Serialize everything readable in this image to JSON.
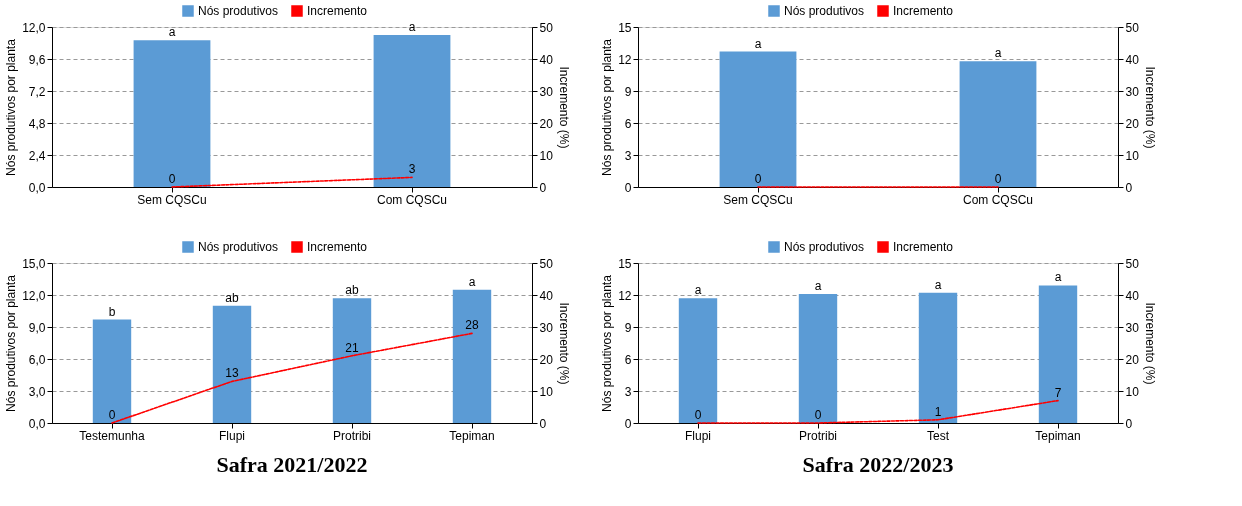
{
  "chart_data": [
    {
      "type": "bar",
      "categories": [
        "Sem CQSCu",
        "Com CQSCu"
      ],
      "ylabel": "Nós produtivos por planta",
      "y2label": "Incremento (%)",
      "ylim": [
        0,
        12
      ],
      "yticks": [
        {
          "value": 0,
          "label": "0,0"
        },
        {
          "value": 2.4,
          "label": "2,4"
        },
        {
          "value": 4.8,
          "label": "4,8"
        },
        {
          "value": 7.2,
          "label": "7,2"
        },
        {
          "value": 9.6,
          "label": "9,6"
        },
        {
          "value": 12,
          "label": "12,0"
        }
      ],
      "y2lim": [
        0,
        50
      ],
      "y2ticks": [
        0,
        10,
        20,
        30,
        40,
        50
      ],
      "grid": "y",
      "legend": "top",
      "series": [
        {
          "name": "Nós produtivos",
          "color": "#5b9bd5",
          "values": [
            11.0,
            11.4
          ],
          "value_labels": [
            "a",
            "a"
          ]
        },
        {
          "name": "Incremento",
          "type": "line",
          "axis": "y2",
          "line_style": "dashed",
          "color": "#ff0000",
          "values": [
            0,
            3
          ],
          "value_labels": [
            "0",
            "3"
          ]
        }
      ]
    },
    {
      "type": "bar",
      "categories": [
        "Sem CQSCu",
        "Com CQSCu"
      ],
      "ylabel": "Nós produtivos por planta",
      "y2label": "Incremento (%)",
      "ylim": [
        0,
        15
      ],
      "yticks": [
        0,
        3,
        6,
        9,
        12,
        15
      ],
      "y2lim": [
        0,
        50
      ],
      "y2ticks": [
        0,
        10,
        20,
        30,
        40,
        50
      ],
      "grid": "y",
      "legend": "top",
      "series": [
        {
          "name": "Nós produtivos",
          "color": "#5b9bd5",
          "values": [
            12.7,
            11.8
          ],
          "value_labels": [
            "a",
            "a"
          ]
        },
        {
          "name": "Incremento",
          "type": "line",
          "axis": "y2",
          "line_style": "dashed",
          "color": "#ff0000",
          "values": [
            0,
            0
          ],
          "value_labels": [
            "0",
            "0"
          ]
        }
      ]
    },
    {
      "type": "bar",
      "categories": [
        "Testemunha",
        "Flupi",
        "Protribi",
        "Tepiman"
      ],
      "ylabel": "Nós produtivos por planta",
      "y2label": "Incremento (%)",
      "ylim": [
        0,
        15
      ],
      "yticks": [
        {
          "value": 0,
          "label": "0,0"
        },
        {
          "value": 3,
          "label": "3,0"
        },
        {
          "value": 6,
          "label": "6,0"
        },
        {
          "value": 9,
          "label": "9,0"
        },
        {
          "value": 12,
          "label": "12,0"
        },
        {
          "value": 15,
          "label": "15,0"
        }
      ],
      "y2lim": [
        0,
        50
      ],
      "y2ticks": [
        0,
        10,
        20,
        30,
        40,
        50
      ],
      "grid": "y",
      "legend": "top",
      "annotations": [
        "Safra 2021/2022"
      ],
      "series": [
        {
          "name": "Nós produtivos",
          "color": "#5b9bd5",
          "values": [
            9.7,
            11.0,
            11.7,
            12.5
          ],
          "value_labels": [
            "b",
            "ab",
            "ab",
            "a"
          ]
        },
        {
          "name": "Incremento",
          "type": "line",
          "axis": "y2",
          "line_style": "dashed",
          "color": "#ff0000",
          "values": [
            0,
            13,
            21,
            28
          ],
          "value_labels": [
            "0",
            "13",
            "21",
            "28"
          ]
        }
      ]
    },
    {
      "type": "bar",
      "categories": [
        "Flupi",
        "Protribi",
        "Test",
        "Tepiman"
      ],
      "ylabel": "Nós produtivos por planta",
      "y2label": "Incremento (%)",
      "ylim": [
        0,
        15
      ],
      "yticks": [
        0,
        3,
        6,
        9,
        12,
        15
      ],
      "y2lim": [
        0,
        50
      ],
      "y2ticks": [
        0,
        10,
        20,
        30,
        40,
        50
      ],
      "grid": "y",
      "legend": "top",
      "annotations": [
        "Safra 2022/2023"
      ],
      "series": [
        {
          "name": "Nós produtivos",
          "color": "#5b9bd5",
          "values": [
            11.7,
            12.1,
            12.2,
            12.9
          ],
          "value_labels": [
            "a",
            "a",
            "a",
            "a"
          ]
        },
        {
          "name": "Incremento",
          "type": "line",
          "axis": "y2",
          "line_style": "dashed",
          "color": "#ff0000",
          "values": [
            0,
            0,
            1,
            7
          ],
          "value_labels": [
            "0",
            "0",
            "1",
            "7"
          ]
        }
      ]
    }
  ]
}
